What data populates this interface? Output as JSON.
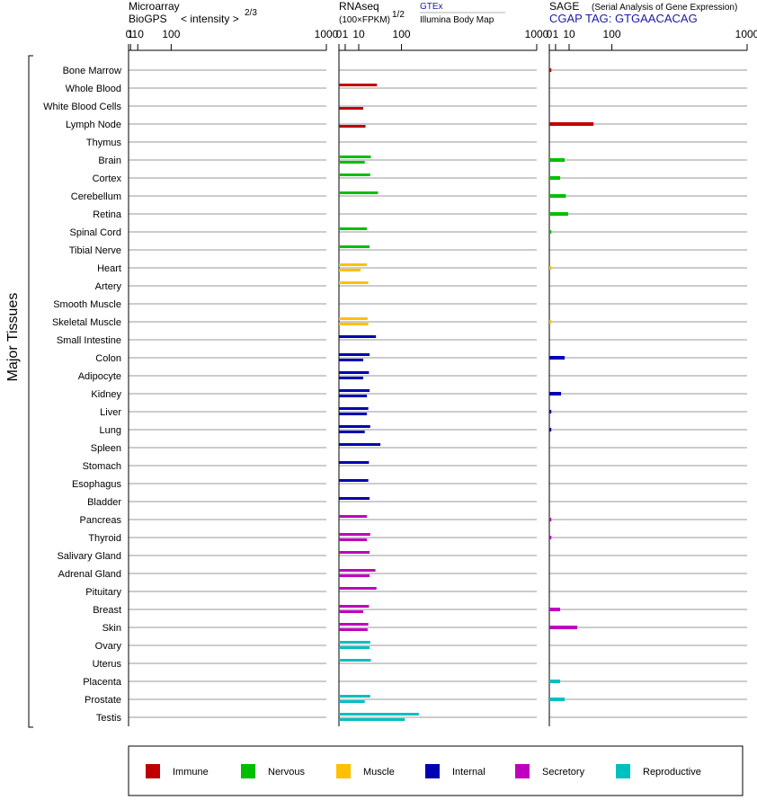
{
  "panels": {
    "microarray": {
      "title": "Microarray",
      "subtitle": "BioGPS",
      "scale_label": "< intensity >",
      "exponent": "2/3"
    },
    "rnaseq": {
      "title": "RNAseq",
      "subtitle": "(100×FPKM)",
      "exponent": "1/2",
      "source_top": "GTEx",
      "source_bottom": "Illumina Body Map"
    },
    "sage": {
      "title": "SAGE",
      "subtitle": "(Serial Analysis of Gene Expression)",
      "tag_line": "CGAP TAG: GTGAACACAG"
    }
  },
  "chart_data": {
    "type": "bar",
    "ylabel": "Major Tissues",
    "ticks": [
      0,
      1,
      10,
      100,
      1000
    ],
    "xlim": [
      0,
      1000
    ],
    "categories": [
      "Bone Marrow",
      "Whole Blood",
      "White Blood Cells",
      "Lymph Node",
      "Thymus",
      "Brain",
      "Cortex",
      "Cerebellum",
      "Retina",
      "Spinal Cord",
      "Tibial Nerve",
      "Heart",
      "Artery",
      "Smooth Muscle",
      "Skeletal Muscle",
      "Small Intestine",
      "Colon",
      "Adipocyte",
      "Kidney",
      "Liver",
      "Lung",
      "Spleen",
      "Stomach",
      "Esophagus",
      "Bladder",
      "Pancreas",
      "Thyroid",
      "Salivary Gland",
      "Adrenal Gland",
      "Pituitary",
      "Breast",
      "Skin",
      "Ovary",
      "Uterus",
      "Placenta",
      "Prostate",
      "Testis"
    ],
    "groups": [
      "Immune",
      "Immune",
      "Immune",
      "Immune",
      "Immune",
      "Nervous",
      "Nervous",
      "Nervous",
      "Nervous",
      "Nervous",
      "Nervous",
      "Muscle",
      "Muscle",
      "Muscle",
      "Muscle",
      "Internal",
      "Internal",
      "Internal",
      "Internal",
      "Internal",
      "Internal",
      "Internal",
      "Internal",
      "Internal",
      "Internal",
      "Secretory",
      "Secretory",
      "Secretory",
      "Secretory",
      "Secretory",
      "Secretory",
      "Secretory",
      "Reproductive",
      "Reproductive",
      "Reproductive",
      "Reproductive",
      "Reproductive"
    ],
    "series": [
      {
        "name": "Microarray",
        "values": [
          null,
          null,
          null,
          null,
          null,
          null,
          null,
          null,
          null,
          null,
          null,
          null,
          null,
          null,
          null,
          null,
          null,
          null,
          null,
          null,
          null,
          null,
          null,
          null,
          null,
          null,
          null,
          null,
          null,
          null,
          null,
          null,
          null,
          null,
          null,
          null,
          null
        ]
      },
      {
        "name": "GTEx",
        "values": [
          null,
          37,
          null,
          null,
          null,
          26,
          25,
          39,
          null,
          20,
          24,
          20,
          22,
          null,
          21,
          35,
          24,
          23,
          24,
          22,
          25,
          44,
          23,
          22,
          24,
          20,
          25,
          24,
          34,
          36,
          23,
          22,
          25,
          26,
          null,
          25,
          163
        ]
      },
      {
        "name": "Illumina Body Map",
        "values": [
          null,
          null,
          15,
          18,
          null,
          17,
          null,
          null,
          null,
          null,
          null,
          12,
          null,
          null,
          22,
          null,
          15,
          15,
          20,
          20,
          17,
          null,
          null,
          null,
          null,
          null,
          20,
          null,
          24,
          null,
          15,
          21,
          24,
          null,
          null,
          17,
          111
        ]
      },
      {
        "name": "SAGE",
        "values": [
          0.1,
          null,
          null,
          50,
          null,
          6,
          3,
          7,
          9,
          0.1,
          null,
          0.1,
          null,
          null,
          0.1,
          null,
          6,
          null,
          3.5,
          0.1,
          0.1,
          null,
          null,
          null,
          null,
          0.1,
          0.1,
          null,
          null,
          null,
          3,
          20,
          null,
          null,
          3,
          6,
          null
        ]
      }
    ],
    "legend": [
      {
        "label": "Immune",
        "color": "#c00000"
      },
      {
        "label": "Nervous",
        "color": "#00bf00"
      },
      {
        "label": "Muscle",
        "color": "#ffc000"
      },
      {
        "label": "Internal",
        "color": "#0000b4"
      },
      {
        "label": "Secretory",
        "color": "#bf00bf"
      },
      {
        "label": "Reproductive",
        "color": "#00bfbf"
      }
    ],
    "grid": true,
    "legend_position": "bottom"
  }
}
